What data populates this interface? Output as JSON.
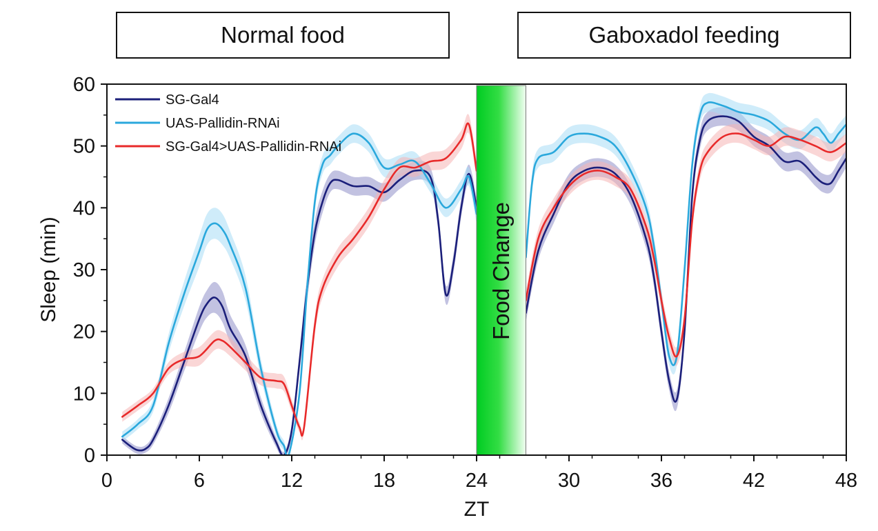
{
  "conditions": {
    "normal": "Normal food",
    "gaboxadol": "Gaboxadol feeding"
  },
  "food_change_label": "Food Change",
  "colors": {
    "food_band_start": "#00cc22",
    "food_band_end": "#f2fff2"
  },
  "chart_data": {
    "type": "line",
    "title": "",
    "xlabel": "ZT",
    "ylabel": "Sleep (min)",
    "xlim": [
      0,
      48
    ],
    "ylim": [
      0,
      60
    ],
    "xticks": [
      0,
      6,
      12,
      18,
      24,
      30,
      36,
      42,
      48
    ],
    "yticks": [
      0,
      10,
      20,
      30,
      40,
      50,
      60
    ],
    "food_change_span": [
      24,
      27.2
    ],
    "legend_position": "top-left",
    "series": [
      {
        "name": "SG-Gal4",
        "color": "#1b1f7a",
        "band_color": "#8f8fc8",
        "segments": [
          {
            "x": [
              1,
              1.5,
              2,
              2.5,
              3,
              4,
              5,
              6,
              6.5,
              7,
              7.5,
              8,
              9,
              10,
              11,
              11.5,
              12,
              12.5,
              13,
              13.5,
              14,
              14.5,
              15,
              16,
              17,
              18,
              19,
              20,
              21,
              21.5,
              22,
              22.5,
              23,
              23.5,
              24
            ],
            "y": [
              2.5,
              1.5,
              0.8,
              1,
              2.5,
              8,
              15,
              22,
              24.5,
              25.5,
              24,
              20.5,
              16,
              8,
              2,
              0,
              4,
              15,
              27,
              36,
              41,
              44,
              44.5,
              43.5,
              43.5,
              42.5,
              44.5,
              46,
              45,
              38,
              26,
              31,
              40,
              45.5,
              40
            ],
            "err": [
              0.6,
              0.6,
              0.6,
              0.6,
              0.8,
              1.2,
              1.5,
              2,
              2.2,
              2.5,
              2.5,
              2.2,
              1.8,
              1.3,
              0.8,
              0.6,
              1,
              1.5,
              2,
              2,
              1.8,
              1.5,
              1.5,
              1.5,
              1.5,
              1.5,
              1.5,
              1.5,
              1.5,
              1.5,
              1.5,
              1.5,
              1.5,
              1.5,
              1.5
            ]
          },
          {
            "x": [
              27.2,
              28,
              29,
              30,
              31,
              32,
              33,
              34,
              35,
              35.5,
              36,
              36.5,
              37,
              37.5,
              38,
              38.5,
              39,
              40,
              41,
              42,
              43,
              44,
              45,
              46,
              46.5,
              47,
              47.5,
              48
            ],
            "y": [
              23,
              33,
              39,
              44,
              46,
              46.5,
              45.5,
              42,
              35,
              29,
              20,
              12,
              9,
              20,
              42,
              51,
              54,
              54.8,
              54,
              51.5,
              50,
              47.5,
              47.5,
              45,
              44,
              44,
              46,
              48
            ],
            "err": [
              1.5,
              1.5,
              1.5,
              1.5,
              1.5,
              1.5,
              1.5,
              1.5,
              1.5,
              1.5,
              1.5,
              1.5,
              1.5,
              1.5,
              1.5,
              1.5,
              1.5,
              1.5,
              1.5,
              1.5,
              1.5,
              1.5,
              1.5,
              1.5,
              1.5,
              1.5,
              1.5,
              1.5
            ]
          }
        ]
      },
      {
        "name": "UAS-Pallidin-RNAi",
        "color": "#2aa8dc",
        "band_color": "#a8dcf5",
        "segments": [
          {
            "x": [
              1,
              2,
              3,
              4,
              5,
              6,
              6.5,
              7,
              7.5,
              8,
              9,
              10,
              11,
              11.5,
              11.8,
              12.5,
              13,
              13.5,
              14,
              14.5,
              15,
              16,
              17,
              18,
              19,
              20,
              21,
              22,
              23,
              23.5,
              24
            ],
            "y": [
              3,
              5,
              8,
              18,
              26,
              33,
              36.5,
              37.5,
              36.5,
              34,
              27,
              14,
              4,
              1.5,
              0,
              10,
              27,
              41,
              47,
              48.5,
              50,
              52,
              50.5,
              46.5,
              47,
              47.5,
              44,
              40,
              43,
              45,
              39
            ],
            "err": [
              0.8,
              0.8,
              1,
              1.5,
              2,
              2.5,
              2.5,
              2.5,
              2.5,
              2.2,
              2,
              1.5,
              1,
              0.8,
              0.6,
              1.2,
              1.5,
              1.5,
              1.5,
              1.5,
              1.5,
              1.5,
              1.5,
              1.5,
              1.5,
              1.5,
              1.5,
              1.5,
              1.5,
              1.5,
              1.5
            ]
          },
          {
            "x": [
              27.2,
              27.6,
              28,
              29,
              30,
              31,
              32,
              33,
              34,
              35,
              35.5,
              36,
              36.5,
              37,
              37.5,
              38,
              38.5,
              39,
              40,
              41,
              42,
              43,
              44,
              45,
              46,
              46.5,
              47,
              47.5,
              48
            ],
            "y": [
              32,
              44,
              48,
              49,
              51.5,
              52,
              51.5,
              50,
              46,
              40,
              34,
              25,
              16,
              16,
              30,
              47,
              55,
              57,
              56.5,
              55.5,
              55,
              54,
              52,
              51,
              53,
              52,
              50.5,
              52,
              53.5
            ],
            "err": [
              1.5,
              1.5,
              1.5,
              1.5,
              1.5,
              1.5,
              1.5,
              1.5,
              1.5,
              1.5,
              1.5,
              1.5,
              1.5,
              1.5,
              1.5,
              1.5,
              1.5,
              1.5,
              1.5,
              1.5,
              1.5,
              1.5,
              1.5,
              1.5,
              1.5,
              1.5,
              1.5,
              1.5,
              1.5
            ]
          }
        ]
      },
      {
        "name": "SG-Gal4>UAS-Pallidin-RNAi",
        "color": "#e82a2a",
        "band_color": "#f5b4b4",
        "segments": [
          {
            "x": [
              1,
              2,
              3,
              4,
              5,
              6,
              7,
              7.5,
              8,
              9,
              10,
              11,
              11.5,
              12,
              12.5,
              12.8,
              13.5,
              14,
              15,
              16,
              17,
              18,
              19,
              20,
              21,
              22,
              23,
              23.5,
              24
            ],
            "y": [
              6.2,
              8,
              10,
              14,
              15.5,
              16,
              18.5,
              18.5,
              17.5,
              15,
              12.5,
              12,
              11.5,
              8,
              4.5,
              4.5,
              21,
              27,
              32,
              35,
              38.5,
              43,
              46.5,
              46.5,
              47.5,
              48,
              51,
              53.5,
              46
            ],
            "err": [
              0.8,
              0.8,
              0.8,
              1,
              1.2,
              1.5,
              1.5,
              1.5,
              1.5,
              1.3,
              1.2,
              1.2,
              1.2,
              1,
              0.8,
              0.8,
              1.5,
              1.5,
              1.5,
              1.5,
              1.5,
              1.5,
              1.5,
              1.5,
              1.5,
              1.5,
              1.5,
              1.5,
              1.5
            ]
          },
          {
            "x": [
              27.2,
              28,
              29,
              30,
              31,
              32,
              33,
              34,
              35,
              35.5,
              36,
              36.5,
              37,
              37.5,
              38,
              38.5,
              39,
              40,
              41,
              42,
              43,
              44,
              45,
              46,
              47,
              48
            ],
            "y": [
              25,
              35,
              40,
              43.5,
              45.5,
              46,
              45,
              43,
              37,
              32,
              25,
              19,
              16,
              22,
              38,
              46,
              49,
              51.5,
              52,
              51,
              50,
              51.5,
              51,
              50,
              49,
              50.5
            ],
            "err": [
              1.5,
              1.5,
              1.5,
              1.5,
              1.5,
              1.5,
              1.5,
              1.5,
              1.5,
              1.5,
              1.5,
              1.5,
              1.5,
              1.5,
              1.5,
              1.5,
              1.5,
              1.5,
              1.5,
              1.5,
              1.5,
              1.5,
              1.5,
              1.5,
              1.5,
              1.5
            ]
          }
        ]
      }
    ]
  }
}
